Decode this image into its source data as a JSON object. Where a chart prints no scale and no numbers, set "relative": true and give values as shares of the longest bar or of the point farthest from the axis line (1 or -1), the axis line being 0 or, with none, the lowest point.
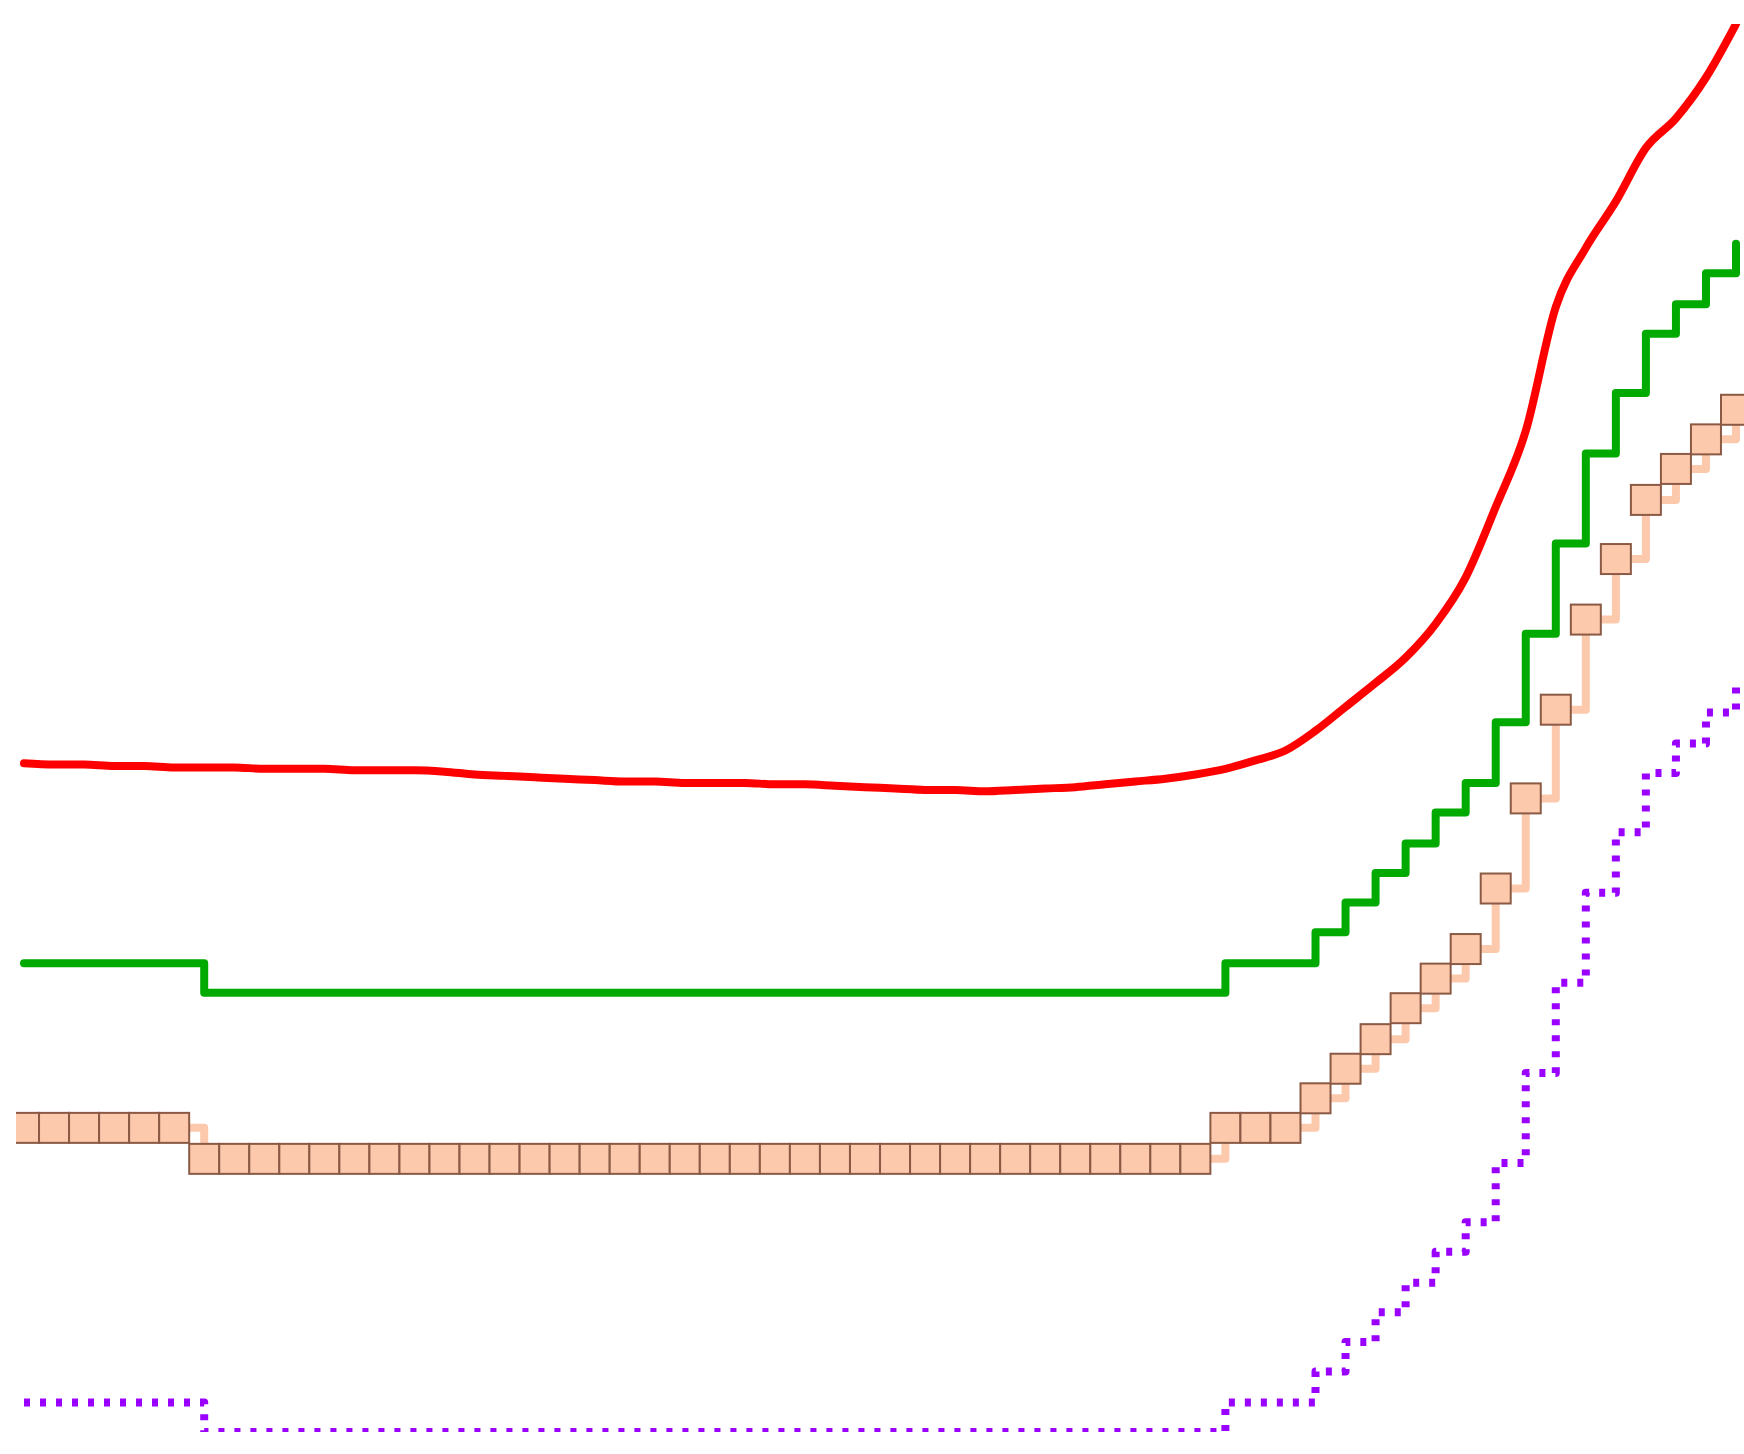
{
  "chart_data": {
    "type": "line",
    "relative": true,
    "categories": [
      null,
      null,
      null,
      null,
      null,
      null,
      null,
      null,
      null,
      null,
      null,
      null,
      null,
      null,
      null,
      null,
      null,
      null,
      null,
      null,
      null,
      null,
      null,
      null,
      null,
      null,
      null,
      null,
      null,
      null,
      null,
      null,
      null,
      null,
      null,
      null,
      null,
      null,
      null,
      null,
      null,
      null,
      null,
      null,
      null,
      null,
      null,
      null,
      null,
      null,
      null,
      null,
      null,
      null,
      null,
      null,
      null,
      null
    ],
    "series": [
      {
        "color": "#ff0000",
        "marker": "none",
        "line_style": "solid",
        "values": [
          0.475,
          0.474,
          0.474,
          0.473,
          0.473,
          0.472,
          0.472,
          0.472,
          0.471,
          0.471,
          0.471,
          0.47,
          0.47,
          0.47,
          0.469,
          0.467,
          0.466,
          0.465,
          0.464,
          0.463,
          0.462,
          0.462,
          0.461,
          0.461,
          0.461,
          0.46,
          0.46,
          0.459,
          0.458,
          0.457,
          0.456,
          0.456,
          0.455,
          0.456,
          0.457,
          0.458,
          0.46,
          0.462,
          0.464,
          0.467,
          0.471,
          0.477,
          0.484,
          0.498,
          0.515,
          0.532,
          0.55,
          0.574,
          0.607,
          0.657,
          0.711,
          0.799,
          0.841,
          0.874,
          0.912,
          0.933,
          0.962,
          1
        ]
      },
      {
        "type": "step",
        "color": "#00aa00",
        "marker": "none",
        "line_style": "solid",
        "values": [
          0.333,
          0.333,
          0.333,
          0.333,
          0.333,
          0.333,
          0.312,
          0.312,
          0.312,
          0.312,
          0.312,
          0.312,
          0.312,
          0.312,
          0.312,
          0.312,
          0.312,
          0.312,
          0.312,
          0.312,
          0.312,
          0.312,
          0.312,
          0.312,
          0.312,
          0.312,
          0.312,
          0.312,
          0.312,
          0.312,
          0.312,
          0.312,
          0.312,
          0.312,
          0.312,
          0.312,
          0.312,
          0.312,
          0.312,
          0.312,
          0.333,
          0.333,
          0.333,
          0.355,
          0.376,
          0.397,
          0.418,
          0.44,
          0.461,
          0.504,
          0.567,
          0.631,
          0.695,
          0.738,
          0.78,
          0.801,
          0.823,
          0.844
        ]
      },
      {
        "type": "step",
        "color": "#fcc9ad",
        "marker": "square",
        "line_style": "solid",
        "values": [
          0.216,
          0.216,
          0.216,
          0.216,
          0.216,
          0.216,
          0.194,
          0.194,
          0.194,
          0.194,
          0.194,
          0.194,
          0.194,
          0.194,
          0.194,
          0.194,
          0.194,
          0.194,
          0.194,
          0.194,
          0.194,
          0.194,
          0.194,
          0.194,
          0.194,
          0.194,
          0.194,
          0.194,
          0.194,
          0.194,
          0.194,
          0.194,
          0.194,
          0.194,
          0.194,
          0.194,
          0.194,
          0.194,
          0.194,
          0.194,
          0.216,
          0.216,
          0.216,
          0.237,
          0.258,
          0.279,
          0.301,
          0.322,
          0.343,
          0.386,
          0.45,
          0.513,
          0.577,
          0.62,
          0.662,
          0.684,
          0.705,
          0.726
        ]
      },
      {
        "type": "step",
        "color": "#9900ff",
        "marker": "none",
        "line_style": "dotted",
        "values": [
          0.021,
          0.021,
          0.021,
          0.021,
          0.021,
          0.021,
          0,
          0,
          0,
          0,
          0,
          0,
          0,
          0,
          0,
          0,
          0,
          0,
          0,
          0,
          0,
          0,
          0,
          0,
          0,
          0,
          0,
          0,
          0,
          0,
          0,
          0,
          0,
          0,
          0,
          0,
          0,
          0,
          0,
          0,
          0.021,
          0.021,
          0.021,
          0.043,
          0.064,
          0.085,
          0.106,
          0.128,
          0.149,
          0.191,
          0.255,
          0.319,
          0.383,
          0.426,
          0.468,
          0.489,
          0.511,
          0.532
        ]
      }
    ],
    "tick_labels": false
  }
}
